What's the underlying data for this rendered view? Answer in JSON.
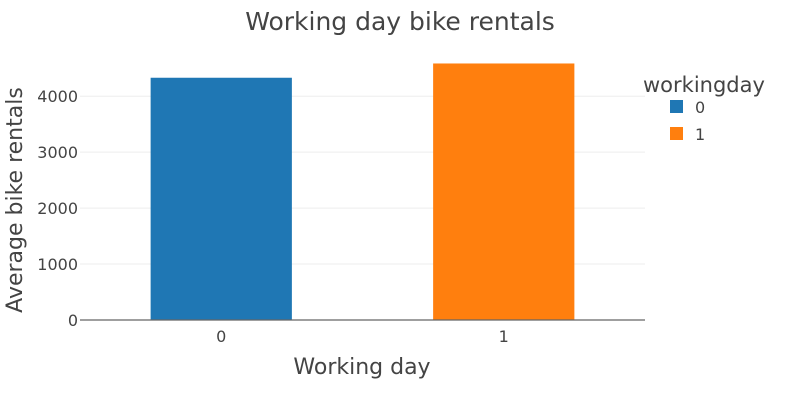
{
  "chart_data": {
    "type": "bar",
    "title": "Working day bike rentals",
    "xlabel": "Working day",
    "ylabel": "Average bike rentals",
    "categories": [
      "0",
      "1"
    ],
    "series": [
      {
        "name": "0",
        "category": "0",
        "value": 4330,
        "color": "#1f77b4"
      },
      {
        "name": "1",
        "category": "1",
        "value": 4585,
        "color": "#ff7f0e"
      }
    ],
    "yticks": [
      0,
      1000,
      2000,
      3000,
      4000
    ],
    "ylim": [
      0,
      4826
    ],
    "grid": true,
    "legend": {
      "title": "workingday",
      "placement": "right",
      "items": [
        "0",
        "1"
      ]
    }
  }
}
